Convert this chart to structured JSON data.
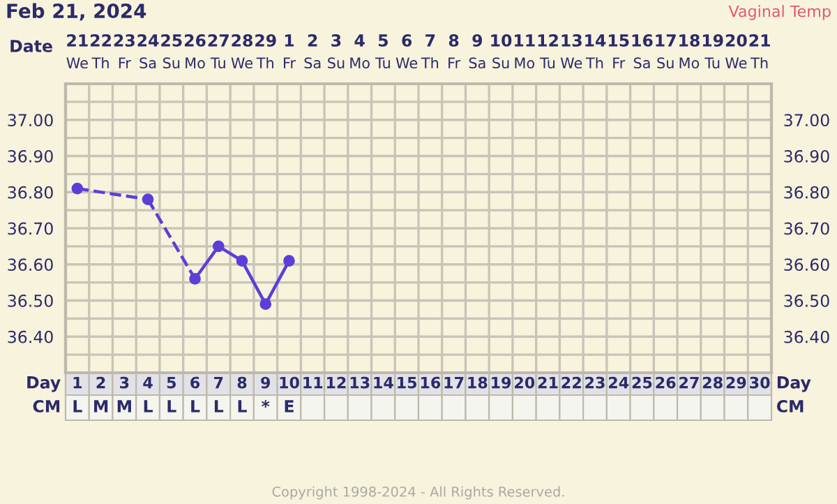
{
  "chart_data": {
    "type": "line",
    "title": "Feb 21, 2024",
    "subtitle": "Vaginal Temp",
    "xlabel": "Day",
    "x2label": "Date",
    "categories": [
      "1",
      "2",
      "3",
      "4",
      "5",
      "6",
      "7",
      "8",
      "9",
      "10",
      "11",
      "12",
      "13",
      "14",
      "15",
      "16",
      "17",
      "18",
      "19",
      "20",
      "21",
      "22",
      "23",
      "24",
      "25",
      "26",
      "27",
      "28",
      "29",
      "30"
    ],
    "series": [
      {
        "color": "#5b3fd8",
        "values": [
          36.81,
          null,
          null,
          36.78,
          null,
          36.56,
          36.65,
          36.61,
          36.49,
          36.61,
          null,
          null,
          null,
          null,
          null,
          null,
          null,
          null,
          null,
          null,
          null,
          null,
          null,
          null,
          null,
          null,
          null,
          null,
          null,
          null
        ]
      }
    ],
    "marker": "circle",
    "ylim": [
      36.3,
      37.1
    ],
    "yticks": [
      {
        "value": 36.35,
        "label": null
      },
      {
        "value": 36.4,
        "label": "36.40"
      },
      {
        "value": 36.45,
        "label": null
      },
      {
        "value": 36.5,
        "label": "36.50"
      },
      {
        "value": 36.55,
        "label": null
      },
      {
        "value": 36.6,
        "label": "36.60"
      },
      {
        "value": 36.65,
        "label": null
      },
      {
        "value": 36.7,
        "label": "36.70"
      },
      {
        "value": 36.75,
        "label": null
      },
      {
        "value": 36.8,
        "label": "36.80"
      },
      {
        "value": 36.85,
        "label": null
      },
      {
        "value": 36.9,
        "label": "36.90"
      },
      {
        "value": 36.95,
        "label": null
      },
      {
        "value": 37.0,
        "label": "37.00"
      },
      {
        "value": 37.05,
        "label": null
      }
    ],
    "y2lim": [
      36.3,
      37.1
    ],
    "y2ticks": [
      {
        "value": 36.35,
        "label": null
      },
      {
        "value": 36.4,
        "label": "36.40"
      },
      {
        "value": 36.45,
        "label": null
      },
      {
        "value": 36.5,
        "label": "36.50"
      },
      {
        "value": 36.55,
        "label": null
      },
      {
        "value": 36.6,
        "label": "36.60"
      },
      {
        "value": 36.65,
        "label": null
      },
      {
        "value": 36.7,
        "label": "36.70"
      },
      {
        "value": 36.75,
        "label": null
      },
      {
        "value": 36.8,
        "label": "36.80"
      },
      {
        "value": 36.85,
        "label": null
      },
      {
        "value": 36.9,
        "label": "36.90"
      },
      {
        "value": 36.95,
        "label": null
      },
      {
        "value": 37.0,
        "label": "37.00"
      },
      {
        "value": 37.05,
        "label": null
      }
    ],
    "grid": true,
    "annotations": [
      "21\nWe",
      "22\nTh",
      "23\nFr",
      "24\nSa",
      "25\nSu",
      "26\nMo",
      "27\nTu",
      "28\nWe",
      "29\nTh",
      "1\nFr",
      "2\nSa",
      "3\nSu",
      "4\nMo",
      "5\nTu",
      "6\nWe",
      "7\nTh",
      "8\nFr",
      "9\nSa",
      "10\nSu",
      "11\nMo",
      "12\nTu",
      "13\nWe",
      "14\nTh",
      "15\nFr",
      "16\nSa",
      "17\nSu",
      "18\nMo",
      "19\nTu",
      "20\nWe",
      "21\nTh",
      "CM",
      "L",
      "M",
      "M",
      "L",
      "L",
      "L",
      "L",
      "L",
      "*",
      "E",
      "Copyright 1998-2024 - All Rights Reserved."
    ]
  }
}
